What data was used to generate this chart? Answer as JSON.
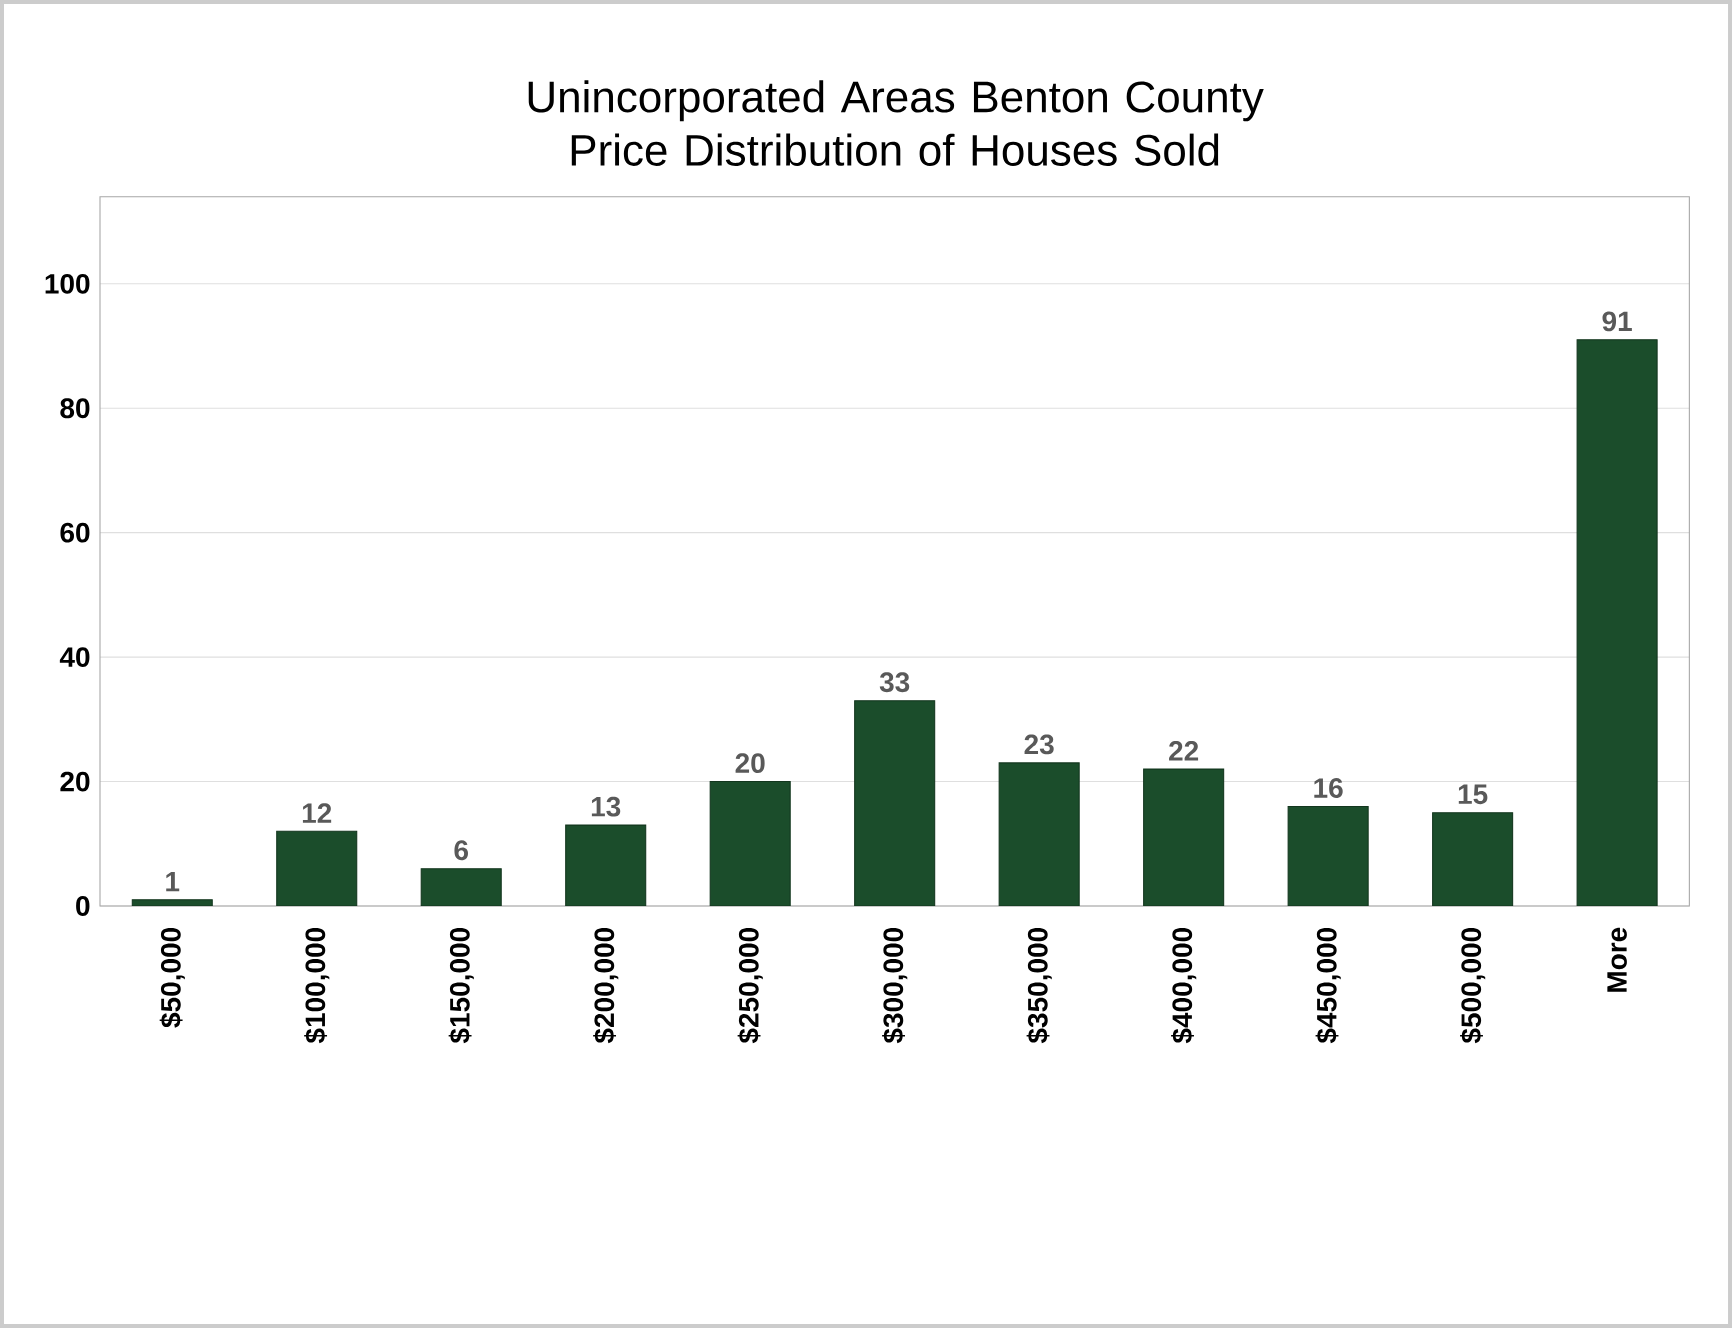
{
  "chart_data": {
    "type": "bar",
    "title": "Unincorporated Areas Benton County Price Distribution of Houses Sold",
    "categories": [
      "$50,000",
      "$100,000",
      "$150,000",
      "$200,000",
      "$250,000",
      "$300,000",
      "$350,000",
      "$400,000",
      "$450,000",
      "$500,000",
      "More"
    ],
    "values": [
      1,
      12,
      6,
      13,
      20,
      33,
      23,
      22,
      16,
      15,
      91
    ],
    "color": "#1b4d2b",
    "ylim": [
      0,
      114
    ],
    "yticks": [
      0,
      20,
      40,
      60,
      80,
      100
    ],
    "grid": "y",
    "data_labels": true
  }
}
